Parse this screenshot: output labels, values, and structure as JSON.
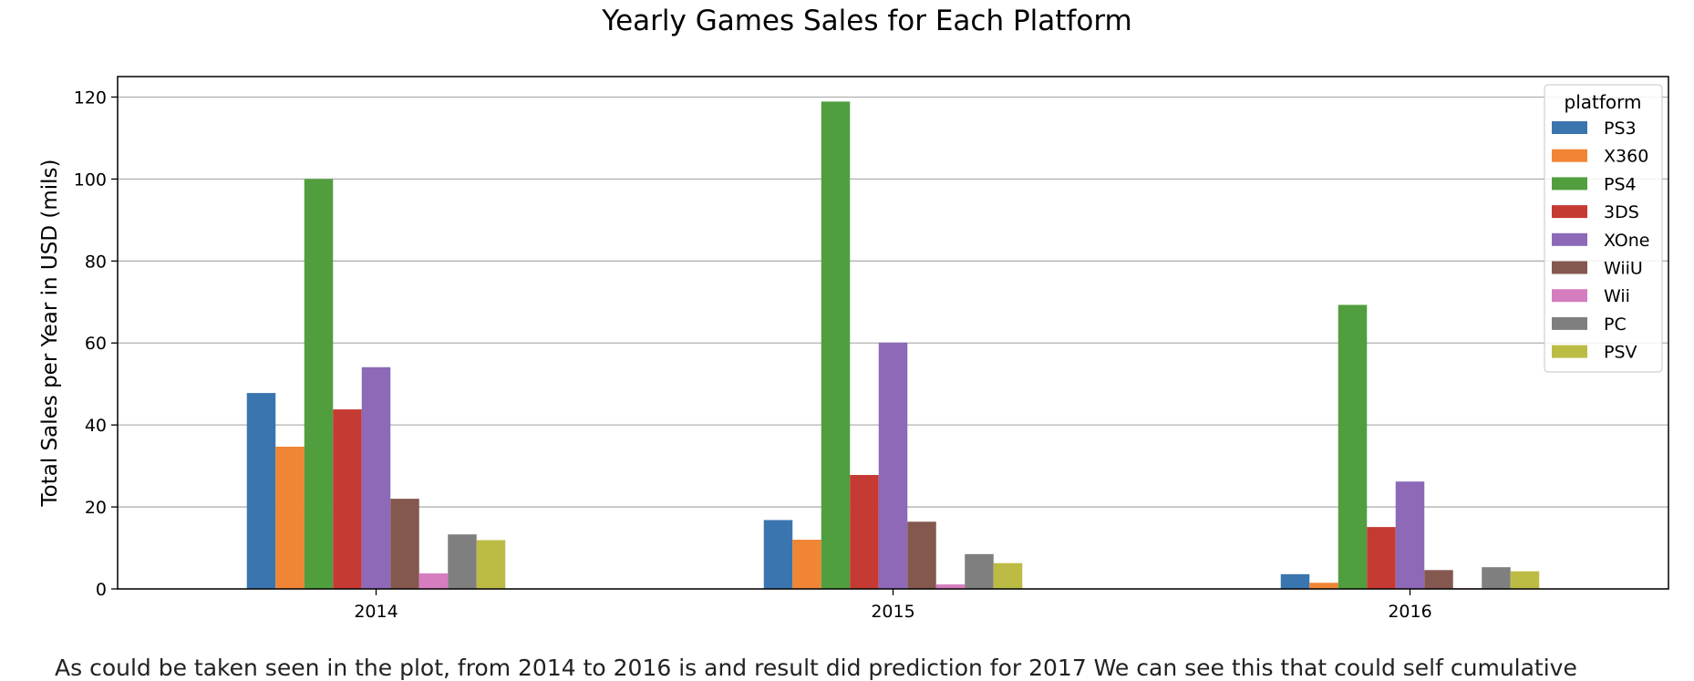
{
  "chart_data": {
    "type": "bar",
    "title": "Yearly Games Sales for Each Platform",
    "xlabel": "",
    "ylabel": "Total Sales per Year in USD (mils)",
    "categories": [
      "2014",
      "2015",
      "2016"
    ],
    "ylim": [
      0,
      125
    ],
    "yticks": [
      0,
      20,
      40,
      60,
      80,
      100,
      120
    ],
    "grid": true,
    "legend": {
      "title": "platform",
      "position": "top-right"
    },
    "series": [
      {
        "name": "PS3",
        "color": "#3a75af",
        "values": [
          47.8,
          16.8,
          3.6
        ]
      },
      {
        "name": "X360",
        "color": "#ef8535",
        "values": [
          34.7,
          12.0,
          1.5
        ]
      },
      {
        "name": "PS4",
        "color": "#519e3e",
        "values": [
          100.0,
          118.9,
          69.3
        ]
      },
      {
        "name": "3DS",
        "color": "#c53a32",
        "values": [
          43.8,
          27.8,
          15.1
        ]
      },
      {
        "name": "XOne",
        "color": "#8d69b8",
        "values": [
          54.1,
          60.1,
          26.2
        ]
      },
      {
        "name": "WiiU",
        "color": "#84584e",
        "values": [
          22.0,
          16.4,
          4.6
        ]
      },
      {
        "name": "Wii",
        "color": "#d57dbf",
        "values": [
          3.8,
          1.1,
          0.2
        ]
      },
      {
        "name": "PC",
        "color": "#7f7f7f",
        "values": [
          13.3,
          8.5,
          5.3
        ]
      },
      {
        "name": "PSV",
        "color": "#bcbc45",
        "values": [
          11.9,
          6.3,
          4.3
        ]
      }
    ]
  },
  "caption": "As could be taken seen in the plot, from 2014 to 2016 is and result did prediction for 2017 We can see this that could self cumulative"
}
